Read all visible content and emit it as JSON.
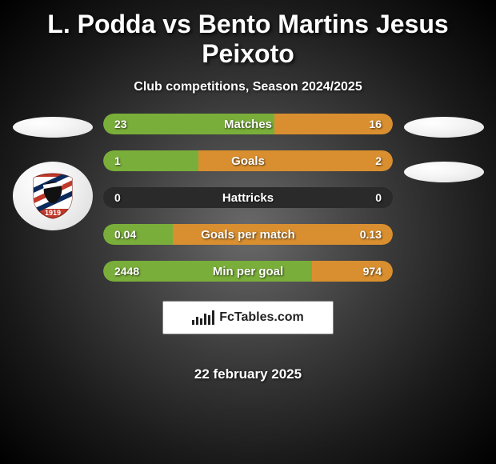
{
  "title": "L. Podda vs Bento Martins Jesus Peixoto",
  "subtitle": "Club competitions, Season 2024/2025",
  "date": "22 february 2025",
  "logo_text": "FcTables.com",
  "colors": {
    "left": "#7aae3a",
    "right": "#d98f2f",
    "bar_bg": "#2a2a2a"
  },
  "stats": [
    {
      "label": "Matches",
      "left_val": "23",
      "right_val": "16",
      "left_pct": 59,
      "right_pct": 41
    },
    {
      "label": "Goals",
      "left_val": "1",
      "right_val": "2",
      "left_pct": 33,
      "right_pct": 67
    },
    {
      "label": "Hattricks",
      "left_val": "0",
      "right_val": "0",
      "left_pct": 0,
      "right_pct": 0
    },
    {
      "label": "Goals per match",
      "left_val": "0.04",
      "right_val": "0.13",
      "left_pct": 24,
      "right_pct": 76
    },
    {
      "label": "Min per goal",
      "left_val": "2448",
      "right_val": "974",
      "left_pct": 72,
      "right_pct": 28
    }
  ],
  "club_badge": {
    "year": "1919",
    "outer_color": "#c0392b",
    "stripes": [
      "#0b2a5b",
      "#ffffff",
      "#c0392b",
      "#ffffff",
      "#0b2a5b"
    ],
    "head_color": "#111111",
    "bandana_color": "#ffffff"
  }
}
